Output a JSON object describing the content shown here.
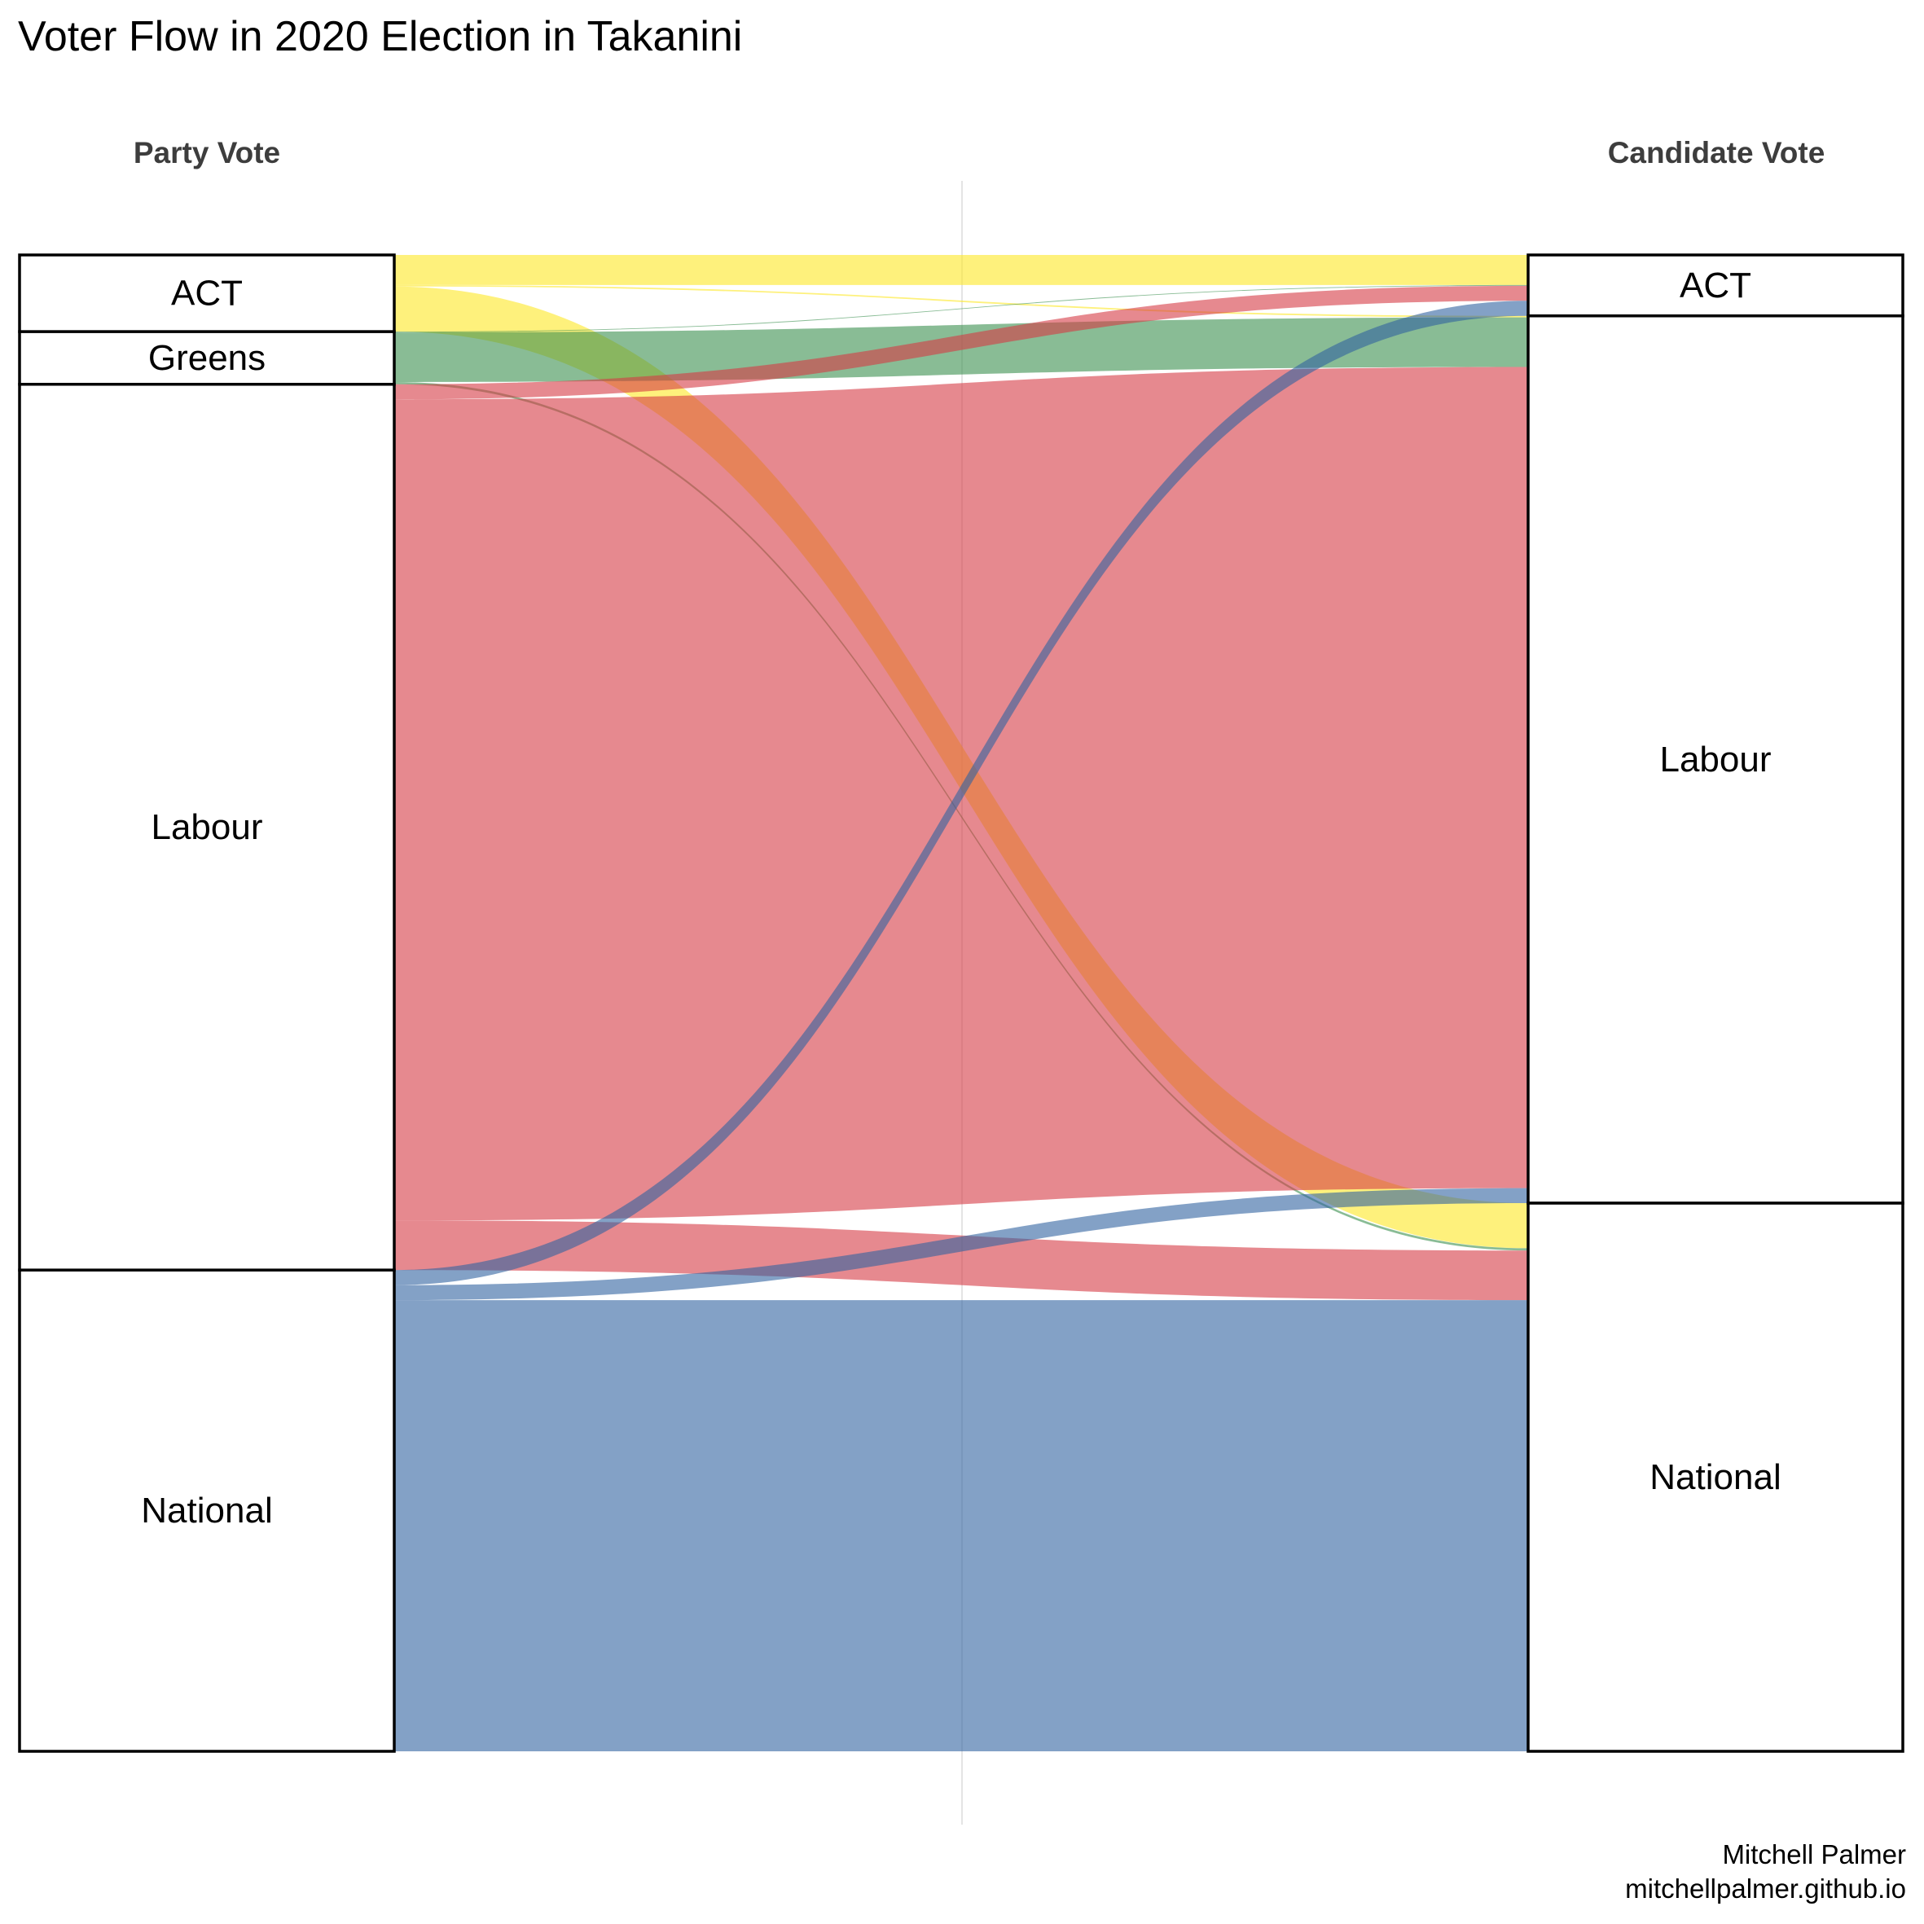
{
  "chart": {
    "title": "Voter Flow in 2020 Election in Takanini",
    "left_axis_title": "Party Vote",
    "right_axis_title": "Candidate Vote",
    "caption_line1": "Mitchell Palmer",
    "caption_line2": "mitchellpalmer.github.io"
  },
  "chart_data": {
    "type": "alluvial",
    "title": "Voter Flow in 2020 Election in Takanini",
    "axes": [
      "Party Vote",
      "Candidate Vote"
    ],
    "party_vote": [
      "ACT",
      "Greens",
      "Labour",
      "National"
    ],
    "candidate_vote": [
      "ACT",
      "Labour",
      "National"
    ],
    "colors": {
      "ACT": "#fde725",
      "Greens": "#3a8f4f",
      "Labour": "#d63a45",
      "National": "#3062a0"
    },
    "flows": [
      {
        "from": "ACT",
        "to": "ACT",
        "value": 2.0
      },
      {
        "from": "ACT",
        "to": "Labour",
        "value": 0.1
      },
      {
        "from": "ACT",
        "to": "National",
        "value": 3.0
      },
      {
        "from": "Greens",
        "to": "ACT",
        "value": 0.05
      },
      {
        "from": "Greens",
        "to": "Labour",
        "value": 3.3
      },
      {
        "from": "Greens",
        "to": "National",
        "value": 0.15
      },
      {
        "from": "Labour",
        "to": "ACT",
        "value": 1.0
      },
      {
        "from": "Labour",
        "to": "Labour",
        "value": 54.6
      },
      {
        "from": "Labour",
        "to": "National",
        "value": 3.3
      },
      {
        "from": "National",
        "to": "ACT",
        "value": 1.0
      },
      {
        "from": "National",
        "to": "Labour",
        "value": 1.0
      },
      {
        "from": "National",
        "to": "National",
        "value": 30.0
      }
    ],
    "caption": "Mitchell Palmer mitchellpalmer.github.io"
  }
}
